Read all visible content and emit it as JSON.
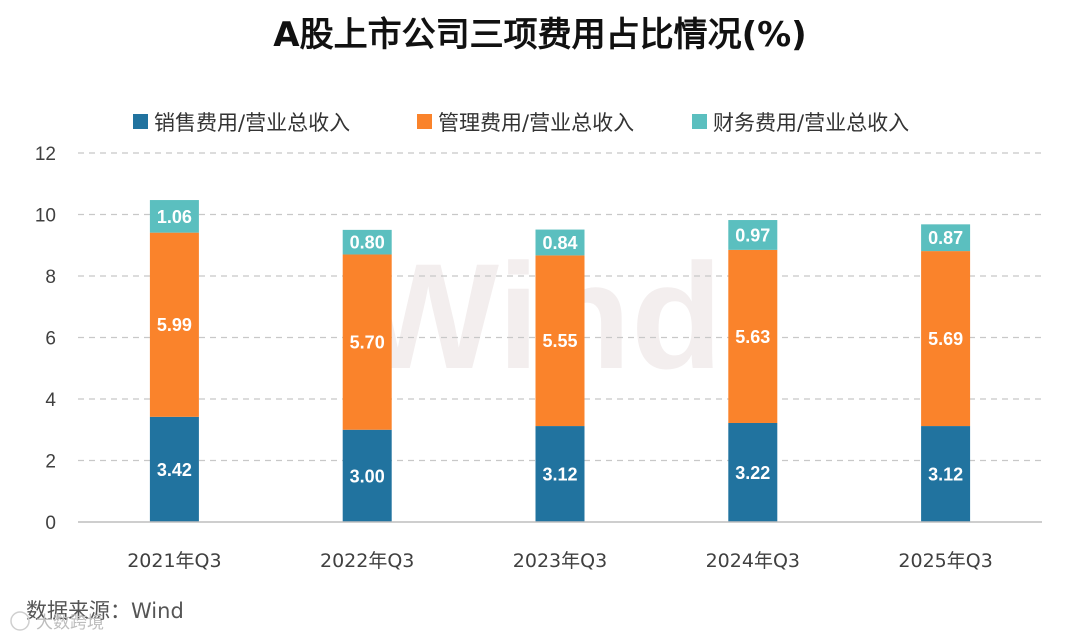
{
  "chart_data": {
    "type": "bar",
    "stacked": true,
    "title": "A股上市公司三项费用占比情况(%)",
    "categories": [
      "2021年Q3",
      "2022年Q3",
      "2023年Q3",
      "2024年Q3",
      "2025年Q3"
    ],
    "series": [
      {
        "name": "销售费用/营业总收入",
        "color": "#21739f",
        "values": [
          3.42,
          3.0,
          3.12,
          3.22,
          3.12
        ]
      },
      {
        "name": "管理费用/营业总收入",
        "color": "#fa832b",
        "values": [
          5.99,
          5.7,
          5.55,
          5.63,
          5.69
        ]
      },
      {
        "name": "财务费用/营业总收入",
        "color": "#5bbfbf",
        "values": [
          1.06,
          0.8,
          0.84,
          0.97,
          0.87
        ]
      }
    ],
    "data_labels": [
      [
        "3.42",
        "3.00",
        "3.12",
        "3.22",
        "3.12"
      ],
      [
        "5.99",
        "5.70",
        "5.55",
        "5.63",
        "5.69"
      ],
      [
        "1.06",
        "0.80",
        "0.84",
        "0.97",
        "0.87"
      ]
    ],
    "ylim": [
      0,
      12
    ],
    "yticks": [
      0,
      2,
      4,
      6,
      8,
      10,
      12
    ],
    "grid": true,
    "legend_position": "top"
  },
  "source": "数据来源：Wind",
  "watermark": "Wind",
  "credit": "大数跨境"
}
